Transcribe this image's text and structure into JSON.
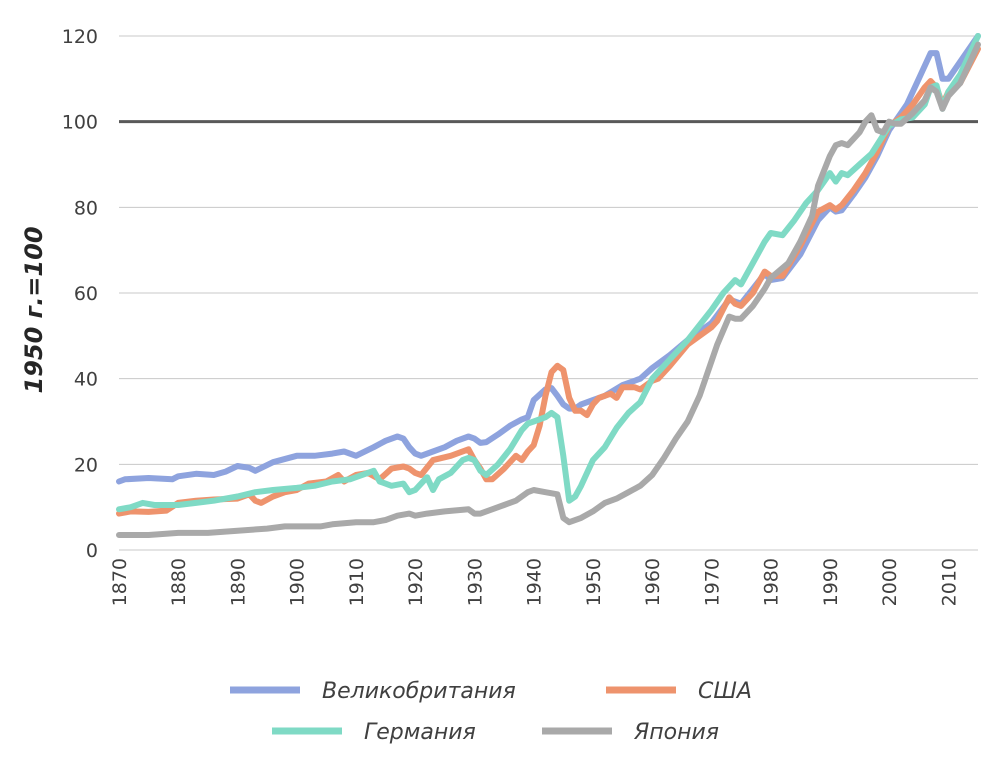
{
  "chart_data": {
    "type": "line",
    "title": "",
    "xlabel": "",
    "ylabel": "1950 г.=100",
    "xlim": [
      1870,
      2015
    ],
    "ylim": [
      0,
      120
    ],
    "y_ticks": [
      0,
      20,
      40,
      60,
      80,
      100,
      120
    ],
    "x_ticks": [
      1870,
      1880,
      1890,
      1900,
      1910,
      1920,
      1930,
      1940,
      1950,
      1960,
      1970,
      1980,
      1990,
      2000,
      2010
    ],
    "grid": true,
    "reference_line": 100,
    "legend_position": "bottom",
    "series": [
      {
        "name": "Великобритания",
        "color": "#8EA3DE",
        "points": [
          [
            1870,
            16
          ],
          [
            1871,
            16.5
          ],
          [
            1875,
            16.8
          ],
          [
            1879,
            16.5
          ],
          [
            1880,
            17.2
          ],
          [
            1883,
            17.8
          ],
          [
            1886,
            17.5
          ],
          [
            1888,
            18.3
          ],
          [
            1890,
            19.6
          ],
          [
            1892,
            19.2
          ],
          [
            1893,
            18.5
          ],
          [
            1896,
            20.5
          ],
          [
            1900,
            22
          ],
          [
            1903,
            22
          ],
          [
            1906,
            22.5
          ],
          [
            1908,
            23
          ],
          [
            1910,
            22
          ],
          [
            1913,
            24
          ],
          [
            1915,
            25.5
          ],
          [
            1917,
            26.5
          ],
          [
            1918,
            26
          ],
          [
            1919,
            24
          ],
          [
            1920,
            22.5
          ],
          [
            1921,
            22
          ],
          [
            1923,
            23
          ],
          [
            1925,
            24
          ],
          [
            1927,
            25.5
          ],
          [
            1929,
            26.5
          ],
          [
            1930,
            26
          ],
          [
            1931,
            25
          ],
          [
            1932,
            25.2
          ],
          [
            1934,
            27
          ],
          [
            1936,
            29
          ],
          [
            1938,
            30.5
          ],
          [
            1939,
            31
          ],
          [
            1940,
            35
          ],
          [
            1942,
            37.5
          ],
          [
            1943,
            37.8
          ],
          [
            1944,
            36
          ],
          [
            1945,
            34
          ],
          [
            1946,
            33
          ],
          [
            1947,
            33
          ],
          [
            1948,
            34
          ],
          [
            1950,
            35
          ],
          [
            1952,
            36
          ],
          [
            1955,
            38.5
          ],
          [
            1958,
            40
          ],
          [
            1960,
            42.5
          ],
          [
            1963,
            45.5
          ],
          [
            1966,
            49
          ],
          [
            1970,
            53
          ],
          [
            1973,
            58.5
          ],
          [
            1975,
            57.5
          ],
          [
            1977,
            61
          ],
          [
            1979,
            64.5
          ],
          [
            1980,
            63
          ],
          [
            1982,
            63.5
          ],
          [
            1985,
            69
          ],
          [
            1988,
            77
          ],
          [
            1990,
            80
          ],
          [
            1991,
            79
          ],
          [
            1992,
            79.3
          ],
          [
            1994,
            83
          ],
          [
            1996,
            87
          ],
          [
            1998,
            92
          ],
          [
            2000,
            98
          ],
          [
            2002,
            102
          ],
          [
            2003,
            104
          ],
          [
            2005,
            110
          ],
          [
            2007,
            116
          ],
          [
            2008,
            116
          ],
          [
            2009,
            110
          ],
          [
            2010,
            110
          ],
          [
            2012,
            114
          ],
          [
            2015,
            120
          ]
        ]
      },
      {
        "name": "США",
        "color": "#EE936D",
        "points": [
          [
            1870,
            8.5
          ],
          [
            1872,
            9
          ],
          [
            1875,
            8.9
          ],
          [
            1878,
            9.2
          ],
          [
            1880,
            11
          ],
          [
            1883,
            11.5
          ],
          [
            1886,
            11.8
          ],
          [
            1890,
            12
          ],
          [
            1892,
            13
          ],
          [
            1893,
            11.5
          ],
          [
            1894,
            11
          ],
          [
            1896,
            12.5
          ],
          [
            1898,
            13.5
          ],
          [
            1900,
            14
          ],
          [
            1902,
            15.5
          ],
          [
            1905,
            16
          ],
          [
            1907,
            17.5
          ],
          [
            1908,
            16
          ],
          [
            1910,
            17.5
          ],
          [
            1912,
            18
          ],
          [
            1914,
            16.5
          ],
          [
            1916,
            19
          ],
          [
            1918,
            19.5
          ],
          [
            1919,
            19
          ],
          [
            1920,
            18
          ],
          [
            1921,
            17.5
          ],
          [
            1923,
            21
          ],
          [
            1926,
            22
          ],
          [
            1929,
            23.5
          ],
          [
            1930,
            21
          ],
          [
            1931,
            19
          ],
          [
            1932,
            16.5
          ],
          [
            1933,
            16.5
          ],
          [
            1935,
            19
          ],
          [
            1937,
            22
          ],
          [
            1938,
            21
          ],
          [
            1939,
            23
          ],
          [
            1940,
            24.5
          ],
          [
            1941,
            29
          ],
          [
            1942,
            36
          ],
          [
            1943,
            41.5
          ],
          [
            1944,
            43
          ],
          [
            1945,
            42
          ],
          [
            1946,
            35.5
          ],
          [
            1947,
            32.5
          ],
          [
            1948,
            32.5
          ],
          [
            1949,
            31.5
          ],
          [
            1950,
            34
          ],
          [
            1951,
            35.5
          ],
          [
            1953,
            36.5
          ],
          [
            1954,
            35.5
          ],
          [
            1955,
            38
          ],
          [
            1957,
            38
          ],
          [
            1958,
            37.5
          ],
          [
            1960,
            39.5
          ],
          [
            1961,
            40
          ],
          [
            1963,
            43
          ],
          [
            1966,
            48
          ],
          [
            1970,
            52
          ],
          [
            1971,
            53.5
          ],
          [
            1973,
            59
          ],
          [
            1974,
            57.5
          ],
          [
            1975,
            57
          ],
          [
            1977,
            60
          ],
          [
            1979,
            65
          ],
          [
            1980,
            64
          ],
          [
            1982,
            64
          ],
          [
            1985,
            71
          ],
          [
            1988,
            79
          ],
          [
            1990,
            80.5
          ],
          [
            1991,
            79.5
          ],
          [
            1992,
            80.5
          ],
          [
            1994,
            84
          ],
          [
            1996,
            88
          ],
          [
            1998,
            93
          ],
          [
            2000,
            99
          ],
          [
            2002,
            101
          ],
          [
            2004,
            104
          ],
          [
            2006,
            108
          ],
          [
            2007,
            109.5
          ],
          [
            2008,
            108
          ],
          [
            2009,
            104
          ],
          [
            2010,
            107
          ],
          [
            2012,
            109
          ],
          [
            2015,
            117
          ]
        ]
      },
      {
        "name": "Германия",
        "color": "#7FDAC5",
        "points": [
          [
            1870,
            9.5
          ],
          [
            1872,
            10
          ],
          [
            1874,
            11
          ],
          [
            1876,
            10.5
          ],
          [
            1880,
            10.5
          ],
          [
            1883,
            11
          ],
          [
            1886,
            11.5
          ],
          [
            1890,
            12.5
          ],
          [
            1893,
            13.5
          ],
          [
            1896,
            14
          ],
          [
            1900,
            14.5
          ],
          [
            1903,
            15
          ],
          [
            1906,
            16
          ],
          [
            1909,
            16.5
          ],
          [
            1912,
            18
          ],
          [
            1913,
            18.5
          ],
          [
            1914,
            16
          ],
          [
            1916,
            15
          ],
          [
            1918,
            15.5
          ],
          [
            1919,
            13.5
          ],
          [
            1920,
            14
          ],
          [
            1922,
            17
          ],
          [
            1923,
            14
          ],
          [
            1924,
            16.5
          ],
          [
            1926,
            18
          ],
          [
            1928,
            21
          ],
          [
            1929,
            21.5
          ],
          [
            1930,
            21
          ],
          [
            1931,
            18.5
          ],
          [
            1932,
            17.5
          ],
          [
            1934,
            20
          ],
          [
            1936,
            23.5
          ],
          [
            1938,
            28
          ],
          [
            1939,
            29.5
          ],
          [
            1940,
            30
          ],
          [
            1942,
            31
          ],
          [
            1943,
            32
          ],
          [
            1944,
            31
          ],
          [
            1945,
            22
          ],
          [
            1946,
            11.5
          ],
          [
            1947,
            12.5
          ],
          [
            1948,
            15
          ],
          [
            1950,
            21
          ],
          [
            1952,
            24
          ],
          [
            1954,
            28.5
          ],
          [
            1956,
            32
          ],
          [
            1958,
            34.5
          ],
          [
            1960,
            40
          ],
          [
            1963,
            44.5
          ],
          [
            1966,
            49
          ],
          [
            1970,
            56
          ],
          [
            1972,
            60
          ],
          [
            1974,
            63
          ],
          [
            1975,
            62
          ],
          [
            1977,
            67
          ],
          [
            1979,
            72
          ],
          [
            1980,
            74
          ],
          [
            1982,
            73.5
          ],
          [
            1984,
            77
          ],
          [
            1986,
            81
          ],
          [
            1988,
            84
          ],
          [
            1989,
            86
          ],
          [
            1990,
            88
          ],
          [
            1991,
            86
          ],
          [
            1992,
            88
          ],
          [
            1993,
            87.5
          ],
          [
            1995,
            90
          ],
          [
            1997,
            92.5
          ],
          [
            2000,
            99
          ],
          [
            2002,
            100.5
          ],
          [
            2004,
            101
          ],
          [
            2006,
            104
          ],
          [
            2007,
            108
          ],
          [
            2008,
            108.5
          ],
          [
            2009,
            103
          ],
          [
            2010,
            107
          ],
          [
            2012,
            111
          ],
          [
            2015,
            120
          ]
        ]
      },
      {
        "name": "Япония",
        "color": "#A9A9A9",
        "points": [
          [
            1870,
            3.5
          ],
          [
            1875,
            3.5
          ],
          [
            1880,
            4
          ],
          [
            1885,
            4
          ],
          [
            1890,
            4.5
          ],
          [
            1895,
            5
          ],
          [
            1898,
            5.5
          ],
          [
            1900,
            5.5
          ],
          [
            1904,
            5.5
          ],
          [
            1906,
            6
          ],
          [
            1910,
            6.5
          ],
          [
            1913,
            6.5
          ],
          [
            1915,
            7
          ],
          [
            1917,
            8
          ],
          [
            1919,
            8.5
          ],
          [
            1920,
            8
          ],
          [
            1922,
            8.5
          ],
          [
            1925,
            9
          ],
          [
            1929,
            9.5
          ],
          [
            1930,
            8.5
          ],
          [
            1931,
            8.5
          ],
          [
            1933,
            9.5
          ],
          [
            1935,
            10.5
          ],
          [
            1937,
            11.5
          ],
          [
            1939,
            13.5
          ],
          [
            1940,
            14
          ],
          [
            1942,
            13.5
          ],
          [
            1944,
            13
          ],
          [
            1945,
            7.5
          ],
          [
            1946,
            6.5
          ],
          [
            1948,
            7.5
          ],
          [
            1950,
            9
          ],
          [
            1952,
            11
          ],
          [
            1954,
            12
          ],
          [
            1956,
            13.5
          ],
          [
            1958,
            15
          ],
          [
            1960,
            17.5
          ],
          [
            1962,
            21.5
          ],
          [
            1964,
            26
          ],
          [
            1966,
            30
          ],
          [
            1968,
            36
          ],
          [
            1970,
            44
          ],
          [
            1971,
            48
          ],
          [
            1973,
            54.5
          ],
          [
            1974,
            54
          ],
          [
            1975,
            54
          ],
          [
            1977,
            57
          ],
          [
            1979,
            61
          ],
          [
            1980,
            63.5
          ],
          [
            1983,
            67
          ],
          [
            1985,
            72
          ],
          [
            1987,
            78
          ],
          [
            1988,
            85
          ],
          [
            1990,
            92
          ],
          [
            1991,
            94.5
          ],
          [
            1992,
            95
          ],
          [
            1993,
            94.5
          ],
          [
            1995,
            97.5
          ],
          [
            1996,
            100
          ],
          [
            1997,
            101.5
          ],
          [
            1998,
            98
          ],
          [
            1999,
            97.5
          ],
          [
            2000,
            100
          ],
          [
            2001,
            99.5
          ],
          [
            2002,
            99.5
          ],
          [
            2004,
            102
          ],
          [
            2006,
            105
          ],
          [
            2007,
            108
          ],
          [
            2008,
            107
          ],
          [
            2009,
            103
          ],
          [
            2010,
            106
          ],
          [
            2012,
            109
          ],
          [
            2015,
            118
          ]
        ]
      }
    ]
  }
}
